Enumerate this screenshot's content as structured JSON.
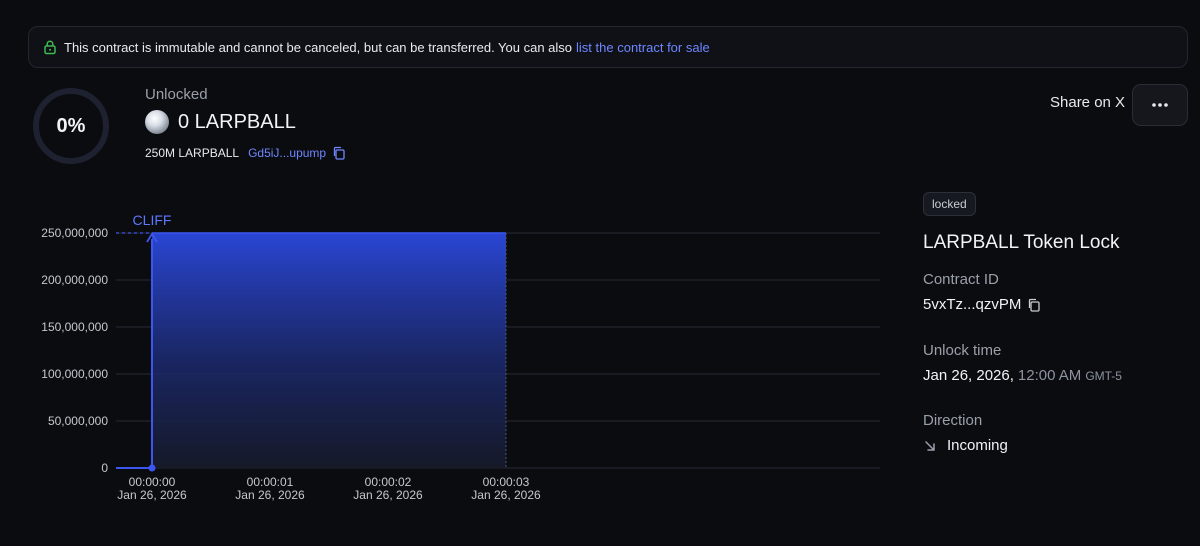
{
  "banner": {
    "message": "This contract is immutable and cannot be canceled, but can be transferred. You can also",
    "link_label": "list the contract for sale",
    "icon": "lock-icon",
    "icon_color": "#3fb950"
  },
  "progress": {
    "percent_label": "0%",
    "value": 0
  },
  "summary": {
    "status_label": "Unlocked",
    "amount": "0 LARPBALL",
    "total": "250M LARPBALL",
    "mint_short": "Gd5iJ...upump"
  },
  "header_actions": {
    "share_label": "Share on X",
    "more_icon": "more-horizontal-icon"
  },
  "chart_data": {
    "type": "area",
    "annotation": "CLIFF",
    "y_ticks": [
      "250,000,000",
      "200,000,000",
      "150,000,000",
      "100,000,000",
      "50,000,000",
      "0"
    ],
    "ylim": [
      0,
      250000000
    ],
    "x_ticks": [
      {
        "time": "00:00:00",
        "date": "Jan 26, 2026"
      },
      {
        "time": "00:00:01",
        "date": "Jan 26, 2026"
      },
      {
        "time": "00:00:02",
        "date": "Jan 26, 2026"
      },
      {
        "time": "00:00:03",
        "date": "Jan 26, 2026"
      }
    ],
    "series": [
      {
        "x": [
          "00:00:00",
          "00:00:00",
          "00:00:03"
        ],
        "y": [
          0,
          250000000,
          250000000
        ]
      }
    ],
    "grid": true,
    "accent": "#3b57f0"
  },
  "details": {
    "badge": "locked",
    "title": "LARPBALL Token Lock",
    "contract_id_label": "Contract ID",
    "contract_id_value": "5vxTz...qzvPM",
    "unlock_time_label": "Unlock time",
    "unlock_date": "Jan 26, 2026,",
    "unlock_time": "12:00 AM",
    "unlock_tz": "GMT-5",
    "direction_label": "Direction",
    "direction_value": "Incoming"
  }
}
